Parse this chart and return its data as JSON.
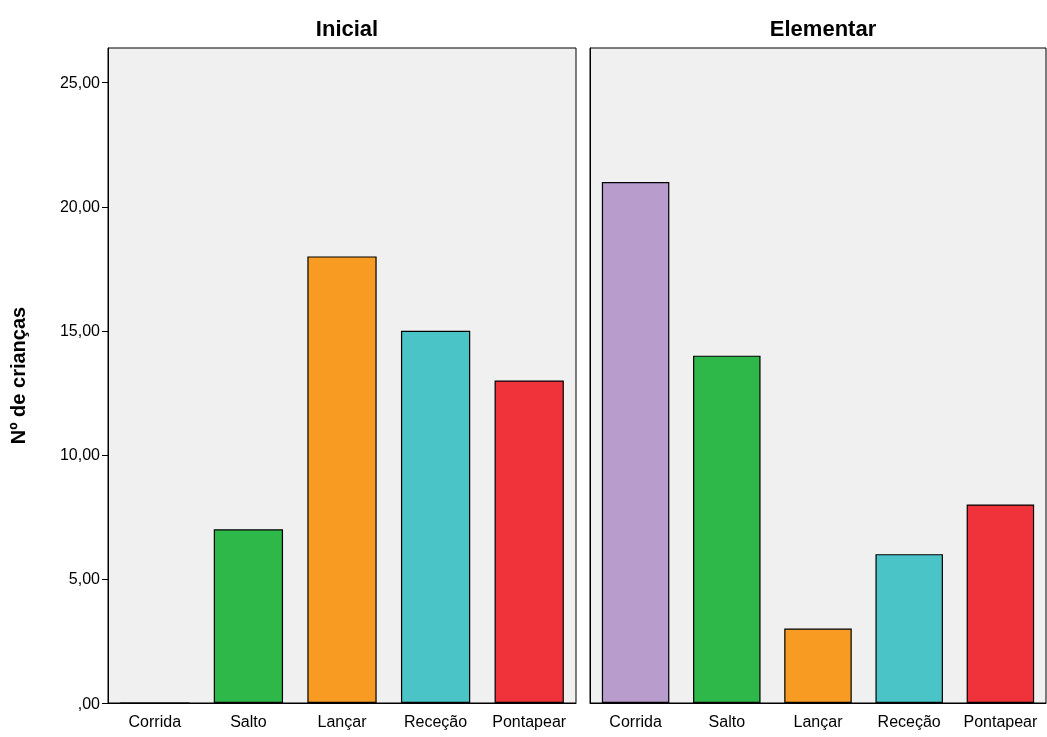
{
  "chart_data": [
    {
      "type": "bar",
      "title": "Inicial",
      "ylabel": "Nº de crianças",
      "categories": [
        "Corrida",
        "Salto",
        "Lançar",
        "Receção",
        "Pontapear"
      ],
      "values": [
        0,
        7,
        18,
        15,
        13
      ],
      "colors": [
        "#b89ccb",
        "#2fb84a",
        "#f89b22",
        "#4bc4c8",
        "#f0333b"
      ],
      "ylim": [
        0,
        26.4
      ],
      "yticks": [
        {
          "value": 0,
          "label": ",00"
        },
        {
          "value": 5,
          "label": "5,00"
        },
        {
          "value": 10,
          "label": "10,00"
        },
        {
          "value": 15,
          "label": "15,00"
        },
        {
          "value": 20,
          "label": "20,00"
        },
        {
          "value": 25,
          "label": "25,00"
        }
      ],
      "grid": false
    },
    {
      "type": "bar",
      "title": "Elementar",
      "categories": [
        "Corrida",
        "Salto",
        "Lançar",
        "Receção",
        "Pontapear"
      ],
      "values": [
        21,
        14,
        3,
        6,
        8
      ],
      "colors": [
        "#b89ccb",
        "#2fb84a",
        "#f89b22",
        "#4bc4c8",
        "#f0333b"
      ],
      "ylim": [
        0,
        26.4
      ],
      "grid": false,
      "tick_labels": "x"
    }
  ]
}
